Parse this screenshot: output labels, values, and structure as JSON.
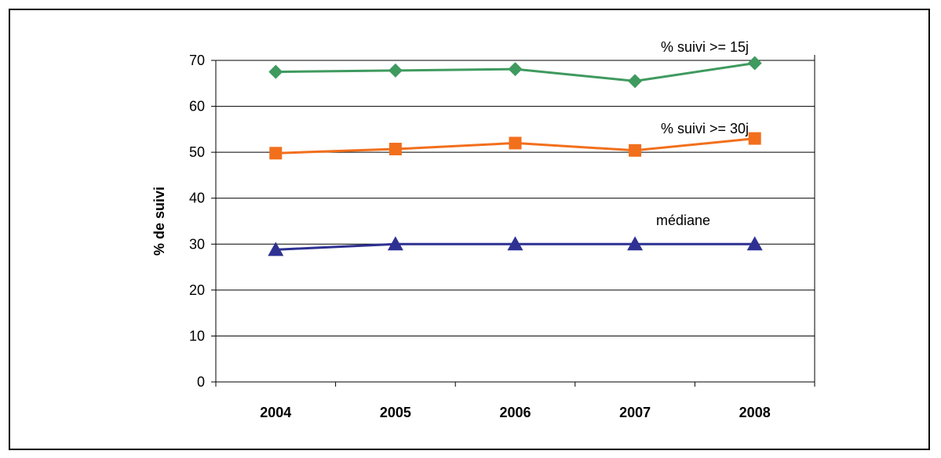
{
  "chart_data": {
    "type": "line",
    "title": "",
    "xlabel": "",
    "ylabel": "% de suivi",
    "ylim": [
      0,
      70
    ],
    "yticks": [
      0,
      10,
      20,
      30,
      40,
      50,
      60,
      70
    ],
    "categories": [
      "2004",
      "2005",
      "2006",
      "2007",
      "2008"
    ],
    "grid": true,
    "legend": "none",
    "series": [
      {
        "name": "% suivi >= 15j",
        "values": [
          67.5,
          67.8,
          68.1,
          65.5,
          69.4
        ],
        "color": "#3f9a5f",
        "marker": "diamond"
      },
      {
        "name": "% suivi >= 30j",
        "values": [
          49.8,
          50.7,
          52.0,
          50.4,
          53.0
        ],
        "color": "#f26f1c",
        "marker": "square"
      },
      {
        "name": "médiane",
        "values": [
          28.8,
          30.0,
          30.0,
          30.0,
          30.0
        ],
        "color": "#2e3192",
        "marker": "triangle"
      }
    ]
  }
}
